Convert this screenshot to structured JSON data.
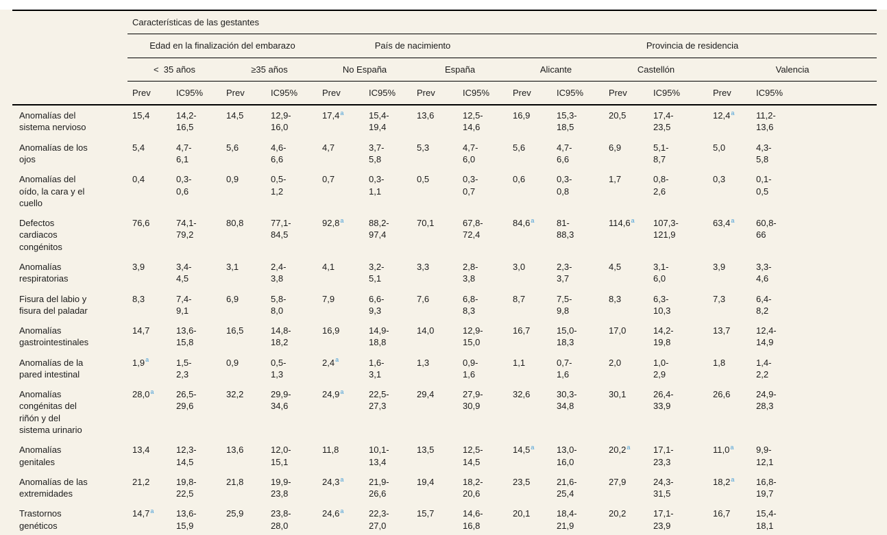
{
  "table": {
    "title": "Características de las gestantes",
    "groups": [
      {
        "label": "Edad en la finalización del embarazo",
        "cols": 4
      },
      {
        "label": "País de nacimiento",
        "cols": 4
      },
      {
        "label": "Provincia de residencia",
        "cols": 6
      }
    ],
    "subgroups": [
      "<  35 años",
      "≥35 años",
      "No España",
      "España",
      "Alicante",
      "Castellón",
      "Valencia"
    ],
    "measures": [
      "Prev",
      "IC95%"
    ],
    "footnote_marker": "a",
    "colors": {
      "sheet_background": "#f6f2e8",
      "rule": "#000000",
      "text": "#1b1b1b",
      "footnote_blue": "#4ba0d8"
    },
    "rows": [
      {
        "label": "Anomalías del sistema nervioso",
        "cells": [
          {
            "prev": "15,4",
            "ic": "14,2-16,5"
          },
          {
            "prev": "14,5",
            "ic": "12,9-16,0"
          },
          {
            "prev": "17,4",
            "sup": true,
            "ic": "15,4-19,4"
          },
          {
            "prev": "13,6",
            "ic": "12,5-14,6"
          },
          {
            "prev": "16,9",
            "ic": "15,3-18,5"
          },
          {
            "prev": "20,5",
            "ic": "17,4-23,5"
          },
          {
            "prev": "12,4",
            "sup": true,
            "ic": "11,2-13,6"
          }
        ]
      },
      {
        "label": "Anomalías de los ojos",
        "cells": [
          {
            "prev": "5,4",
            "ic": "4,7-6,1"
          },
          {
            "prev": "5,6",
            "ic": "4,6-6,6"
          },
          {
            "prev": "4,7",
            "ic": "3,7-5,8"
          },
          {
            "prev": "5,3",
            "ic": "4,7-6,0"
          },
          {
            "prev": "5,6",
            "ic": "4,7-6,6"
          },
          {
            "prev": "6,9",
            "ic": "5,1-8,7"
          },
          {
            "prev": "5,0",
            "ic": "4,3-5,8"
          }
        ]
      },
      {
        "label": "Anomalías del oído, la cara y el cuello",
        "cells": [
          {
            "prev": "0,4",
            "ic": "0,3-0,6"
          },
          {
            "prev": "0,9",
            "ic": "0,5-1,2"
          },
          {
            "prev": "0,7",
            "ic": "0,3-1,1"
          },
          {
            "prev": "0,5",
            "ic": "0,3-0,7"
          },
          {
            "prev": "0,6",
            "ic": "0,3-0,8"
          },
          {
            "prev": "1,7",
            "ic": "0,8-2,6"
          },
          {
            "prev": "0,3",
            "ic": "0,1-0,5"
          }
        ]
      },
      {
        "label": "Defectos cardiacos congénitos",
        "cells": [
          {
            "prev": "76,6",
            "ic": "74,1-79,2"
          },
          {
            "prev": "80,8",
            "ic": "77,1-84,5"
          },
          {
            "prev": "92,8",
            "sup": true,
            "ic": "88,2-97,4"
          },
          {
            "prev": "70,1",
            "ic": "67,8-72,4"
          },
          {
            "prev": "84,6",
            "sup": true,
            "ic": "81-88,3"
          },
          {
            "prev": "114,6",
            "sup": true,
            "ic": "107,3-121,9"
          },
          {
            "prev": "63,4",
            "sup": true,
            "ic": "60,8-66"
          }
        ]
      },
      {
        "label": "Anomalías respiratorias",
        "cells": [
          {
            "prev": "3,9",
            "ic": "3,4-4,5"
          },
          {
            "prev": "3,1",
            "ic": "2,4-3,8"
          },
          {
            "prev": "4,1",
            "ic": "3,2-5,1"
          },
          {
            "prev": "3,3",
            "ic": "2,8-3,8"
          },
          {
            "prev": "3,0",
            "ic": "2,3-3,7"
          },
          {
            "prev": "4,5",
            "ic": "3,1-6,0"
          },
          {
            "prev": "3,9",
            "ic": "3,3-4,6"
          }
        ]
      },
      {
        "label": "Fisura del labio y fisura del paladar",
        "cells": [
          {
            "prev": "8,3",
            "ic": "7,4-9,1"
          },
          {
            "prev": "6,9",
            "ic": "5,8-8,0"
          },
          {
            "prev": "7,9",
            "ic": "6,6-9,3"
          },
          {
            "prev": "7,6",
            "ic": "6,8-8,3"
          },
          {
            "prev": "8,7",
            "ic": "7,5-9,8"
          },
          {
            "prev": "8,3",
            "ic": "6,3-10,3"
          },
          {
            "prev": "7,3",
            "ic": "6,4-8,2"
          }
        ]
      },
      {
        "label": "Anomalías gastrointestinales",
        "cells": [
          {
            "prev": "14,7",
            "ic": "13,6-15,8"
          },
          {
            "prev": "16,5",
            "ic": "14,8-18,2"
          },
          {
            "prev": "16,9",
            "ic": "14,9-18,8"
          },
          {
            "prev": "14,0",
            "ic": "12,9-15,0"
          },
          {
            "prev": "16,7",
            "ic": "15,0-18,3"
          },
          {
            "prev": "17,0",
            "ic": "14,2-19,8"
          },
          {
            "prev": "13,7",
            "ic": "12,4-14,9"
          }
        ]
      },
      {
        "label": "Anomalías de la pared intestinal",
        "cells": [
          {
            "prev": "1,9",
            "sup": true,
            "ic": "1,5-2,3"
          },
          {
            "prev": "0,9",
            "ic": "0,5-1,3"
          },
          {
            "prev": "2,4",
            "sup": true,
            "ic": "1,6-3,1"
          },
          {
            "prev": "1,3",
            "ic": "0,9-1,6"
          },
          {
            "prev": "1,1",
            "ic": "0,7-1,6"
          },
          {
            "prev": "2,0",
            "ic": "1,0-2,9"
          },
          {
            "prev": "1,8",
            "ic": "1,4-2,2"
          }
        ]
      },
      {
        "label": "Anomalías congénitas del riñón y del sistema urinario",
        "cells": [
          {
            "prev": "28,0",
            "sup": true,
            "ic": "26,5-29,6"
          },
          {
            "prev": "32,2",
            "ic": "29,9-34,6"
          },
          {
            "prev": "24,9",
            "sup": true,
            "ic": "22,5-27,3"
          },
          {
            "prev": "29,4",
            "ic": "27,9-30,9"
          },
          {
            "prev": "32,6",
            "ic": "30,3-34,8"
          },
          {
            "prev": "30,1",
            "ic": "26,4-33,9"
          },
          {
            "prev": "26,6",
            "ic": "24,9-28,3"
          }
        ]
      },
      {
        "label": "Anomalías genitales",
        "cells": [
          {
            "prev": "13,4",
            "ic": "12,3-14,5"
          },
          {
            "prev": "13,6",
            "ic": "12,0-15,1"
          },
          {
            "prev": "11,8",
            "ic": "10,1-13,4"
          },
          {
            "prev": "13,5",
            "ic": "12,5-14,5"
          },
          {
            "prev": "14,5",
            "sup": true,
            "ic": "13,0-16,0"
          },
          {
            "prev": "20,2",
            "sup": true,
            "ic": "17,1-23,3"
          },
          {
            "prev": "11,0",
            "sup": true,
            "ic": "9,9-12,1"
          }
        ]
      },
      {
        "label": "Anomalías de las extremidades",
        "cells": [
          {
            "prev": "21,2",
            "ic": "19,8-22,5"
          },
          {
            "prev": "21,8",
            "ic": "19,9-23,8"
          },
          {
            "prev": "24,3",
            "sup": true,
            "ic": "21,9-26,6"
          },
          {
            "prev": "19,4",
            "ic": "18,2-20,6"
          },
          {
            "prev": "23,5",
            "ic": "21,6-25,4"
          },
          {
            "prev": "27,9",
            "ic": "24,3-31,5"
          },
          {
            "prev": "18,2",
            "sup": true,
            "ic": "16,8-19,7"
          }
        ]
      },
      {
        "label": "Trastornos genéticos",
        "cells": [
          {
            "prev": "14,7",
            "sup": true,
            "ic": "13,6-15,9"
          },
          {
            "prev": "25,9",
            "ic": "23,8-28,0"
          },
          {
            "prev": "24,6",
            "sup": true,
            "ic": "22,3-27,0"
          },
          {
            "prev": "15,7",
            "ic": "14,6-16,8"
          },
          {
            "prev": "20,1",
            "ic": "18,4-21,9"
          },
          {
            "prev": "20,2",
            "ic": "17,1-23,9"
          },
          {
            "prev": "16,7",
            "ic": "15,4-18,1"
          }
        ]
      }
    ]
  }
}
